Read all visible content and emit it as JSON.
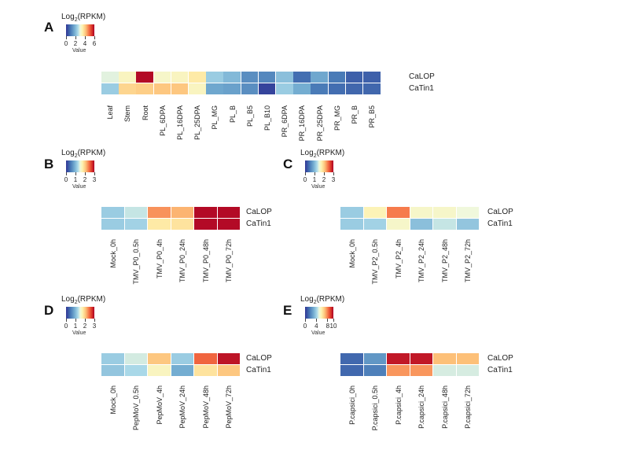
{
  "chart_data": [
    {
      "type": "heatmap",
      "panel": "A",
      "legend": {
        "title_main": "Log",
        "title_sub": "2",
        "title_tail": "(RPKM)",
        "ticks": [
          "0",
          "2",
          "4",
          "6"
        ],
        "range": [
          0,
          6
        ],
        "value_label": "Value"
      },
      "rows": [
        "CaLOP",
        "CaTin1"
      ],
      "columns": [
        "Leaf",
        "Stem",
        "Root",
        "PL_6DPA",
        "PL_16DPA",
        "PL_25DPA",
        "PL_MG",
        "PL_B",
        "PL_B5",
        "PL_B10",
        "PR_6DPA",
        "PR_16DPA",
        "PR_25DPA",
        "PR_MG",
        "PR_B",
        "PR_B5"
      ],
      "values": [
        [
          2.9,
          3.3,
          5.9,
          3.2,
          3.3,
          3.6,
          2.3,
          2.0,
          1.3,
          1.2,
          2.1,
          0.8,
          1.7,
          1.0,
          0.6,
          0.6
        ],
        [
          2.3,
          3.9,
          4.0,
          4.1,
          4.1,
          3.3,
          1.7,
          1.6,
          1.3,
          0.2,
          2.3,
          1.8,
          1.0,
          0.8,
          0.7,
          0.7
        ]
      ]
    },
    {
      "type": "heatmap",
      "panel": "B",
      "legend": {
        "title_main": "Log",
        "title_sub": "2",
        "title_tail": "(RPKM)",
        "ticks": [
          "0",
          "1",
          "2",
          "3"
        ],
        "range": [
          0,
          3
        ],
        "value_label": "Value"
      },
      "rows": [
        "CaLOP",
        "CaTin1"
      ],
      "columns": [
        "Mock_0h",
        "TMV_P0_0.5h",
        "TMV_P0_4h",
        "TMV_P0_24h",
        "TMV_P0_48h",
        "TMV_P0_72h"
      ],
      "values": [
        [
          1.15,
          1.35,
          2.3,
          2.15,
          2.95,
          2.95
        ],
        [
          1.15,
          1.2,
          1.8,
          1.85,
          2.95,
          2.95
        ]
      ]
    },
    {
      "type": "heatmap",
      "panel": "C",
      "legend": {
        "title_main": "Log",
        "title_sub": "2",
        "title_tail": "(RPKM)",
        "ticks": [
          "0",
          "1",
          "2",
          "3"
        ],
        "range": [
          0,
          3
        ],
        "value_label": "Value"
      },
      "rows": [
        "CaLOP",
        "CaTin1"
      ],
      "columns": [
        "Mock_0h",
        "TMV_P2_0.5h",
        "TMV_P2_4h",
        "TMV_P2_24h",
        "TMV_P2_48h",
        "TMV_P2_72h"
      ],
      "values": [
        [
          1.15,
          1.7,
          2.4,
          1.6,
          1.6,
          1.5
        ],
        [
          1.15,
          1.2,
          1.6,
          1.05,
          1.35,
          1.1
        ]
      ]
    },
    {
      "type": "heatmap",
      "panel": "D",
      "legend": {
        "title_main": "Log",
        "title_sub": "2",
        "title_tail": "(RPKM)",
        "ticks": [
          "0",
          "1",
          "2",
          "3"
        ],
        "range": [
          0,
          3
        ],
        "value_label": "Value"
      },
      "rows": [
        "CaLOP",
        "CaTin1"
      ],
      "columns": [
        "Mock_0h",
        "PepMoV_0.5h",
        "PepMoV_4h",
        "PepMoV_24h",
        "PepMoV_48h",
        "PepMoV_72h"
      ],
      "values": [
        [
          1.15,
          1.4,
          2.05,
          1.15,
          2.5,
          2.9
        ],
        [
          1.1,
          1.25,
          1.65,
          0.9,
          1.85,
          2.05
        ]
      ]
    },
    {
      "type": "heatmap",
      "panel": "E",
      "legend": {
        "title_main": "Log",
        "title_sub": "2",
        "title_tail": "(RPKM)",
        "ticks": [
          "0",
          "4",
          "8",
          "10"
        ],
        "range": [
          0,
          10
        ],
        "value_label": "Value"
      },
      "rows": [
        "CaLOP",
        "CaTin1"
      ],
      "columns": [
        "P.capsici_0h",
        "P.capsici_0.5h",
        "P.capsici_4h",
        "P.capsici_24h",
        "P.capsici_48h",
        "P.capsici_72h"
      ],
      "values": [
        [
          1.2,
          2.4,
          9.6,
          9.6,
          7.0,
          7.0
        ],
        [
          1.2,
          1.8,
          7.6,
          7.6,
          4.7,
          4.7
        ]
      ]
    }
  ]
}
